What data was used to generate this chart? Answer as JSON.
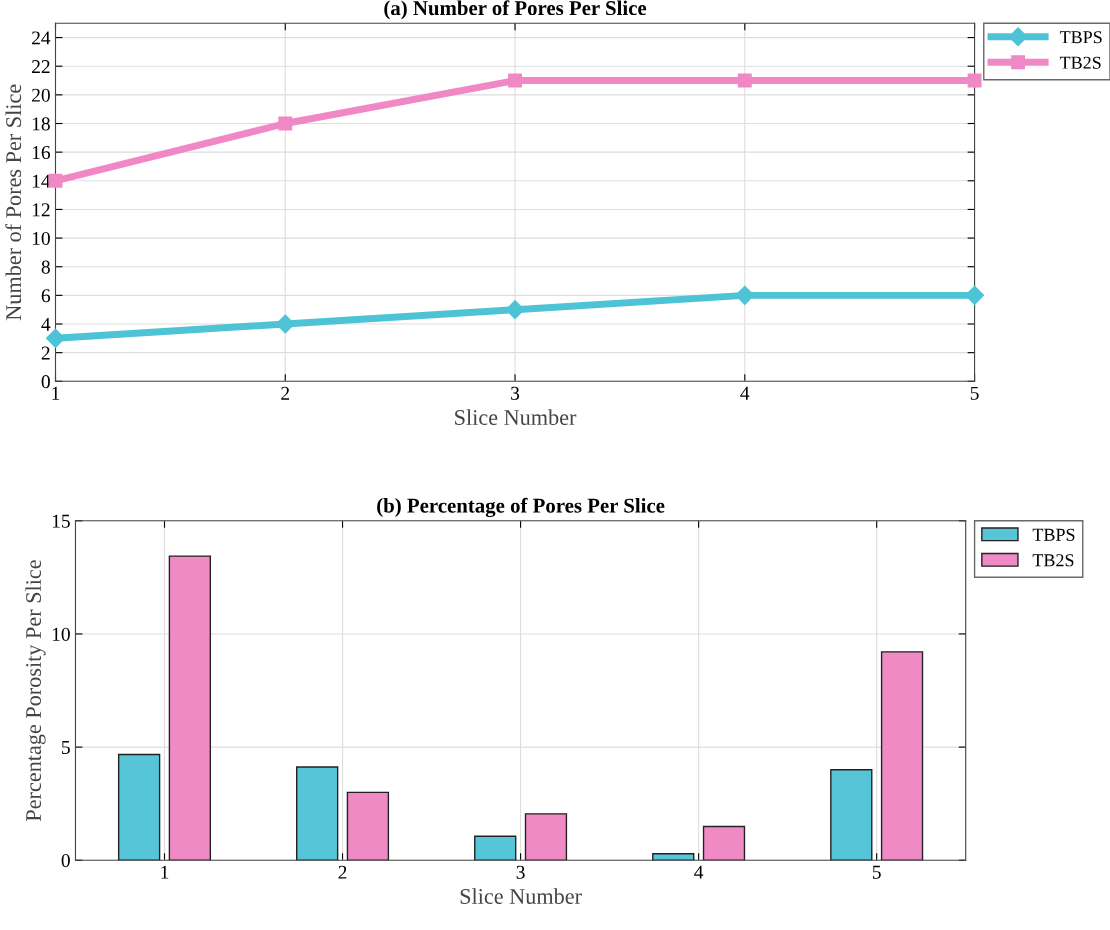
{
  "chart_data": [
    {
      "type": "line",
      "title": "(a) Number of Pores Per Slice",
      "xlabel": "Slice Number",
      "ylabel": "Number of Pores Per Slice",
      "x": [
        1,
        2,
        3,
        4,
        5
      ],
      "xlim": [
        1,
        5
      ],
      "xticks": [
        1,
        2,
        3,
        4,
        5
      ],
      "ylim": [
        0,
        25
      ],
      "yticks": [
        0,
        2,
        4,
        6,
        8,
        10,
        12,
        14,
        16,
        18,
        20,
        22,
        24
      ],
      "grid": true,
      "legend": "top right",
      "line_style": "solid",
      "series": [
        {
          "name": "TBPS",
          "color": "#4fc3d6",
          "marker": "diamond",
          "values": [
            3,
            4,
            5,
            6,
            6
          ]
        },
        {
          "name": "TB2S",
          "color": "#ef88c4",
          "marker": "square",
          "values": [
            14,
            18,
            21,
            21,
            21
          ]
        }
      ]
    },
    {
      "type": "bar",
      "title": "(b) Percentage of Pores Per Slice",
      "xlabel": "Slice Number",
      "ylabel": "Percentage Porosity Per Slice",
      "categories": [
        "1",
        "2",
        "3",
        "4",
        "5"
      ],
      "ylim": [
        0,
        15
      ],
      "yticks": [
        0,
        5,
        10,
        15
      ],
      "grid": true,
      "legend": "top right",
      "series": [
        {
          "name": "TBPS",
          "color": "#56c5d8",
          "values": [
            4.67,
            4.12,
            1.06,
            0.29,
            4.0
          ]
        },
        {
          "name": "TB2S",
          "color": "#ef8ac4",
          "values": [
            13.44,
            3.0,
            2.05,
            1.49,
            9.21
          ]
        }
      ]
    }
  ]
}
